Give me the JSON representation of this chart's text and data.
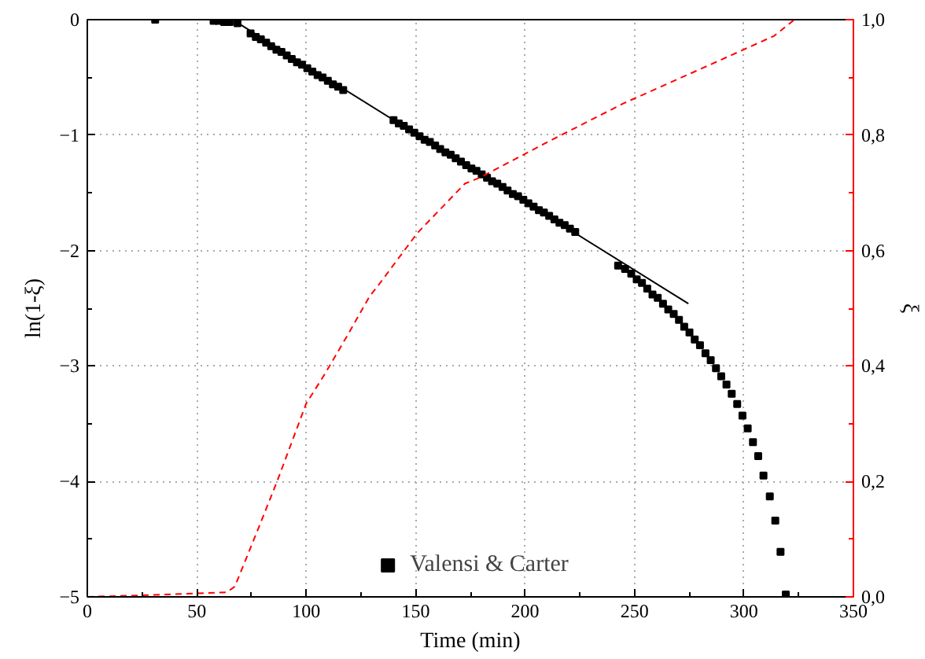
{
  "chart_data": {
    "type": "scatter",
    "xlabel": "Time (min)",
    "ylabel": "ln(1-ξ)",
    "y2label": "ξ",
    "xlim": [
      0,
      350
    ],
    "xticks": [
      0,
      50,
      100,
      150,
      200,
      250,
      300,
      350
    ],
    "ylim": [
      -5,
      0
    ],
    "yticks": [
      -5,
      -4,
      -3,
      -2,
      -1,
      0
    ],
    "y2lim": [
      0,
      1
    ],
    "y2ticks": [
      {
        "value": 0,
        "label": "0,0"
      },
      {
        "value": 0.2,
        "label": "0,2"
      },
      {
        "value": 0.4,
        "label": "0,4"
      },
      {
        "value": 0.6,
        "label": "0,6"
      },
      {
        "value": 0.8,
        "label": "0,8"
      },
      {
        "value": 1,
        "label": "1,0"
      }
    ],
    "grid": true,
    "legend": "bottom",
    "series": [
      {
        "name": "Valensi & Carter",
        "marker": "square",
        "color": "#000000",
        "x": [
          31,
          57.7,
          60,
          62.5,
          65,
          68.6,
          74.6,
          77.0,
          79.3,
          81.7,
          84.0,
          86.4,
          88.7,
          91.1,
          93.4,
          95.8,
          98.1,
          100.5,
          102.8,
          105.2,
          107.5,
          109.9,
          112.2,
          114.6,
          116.9,
          139.9,
          142.3,
          144.6,
          147.0,
          149.4,
          151.8,
          154.1,
          156.5,
          158.9,
          161.2,
          163.6,
          166.0,
          168.3,
          170.7,
          173.1,
          175.5,
          177.8,
          180.2,
          182.6,
          184.9,
          187.3,
          189.7,
          192.0,
          194.4,
          196.8,
          199.2,
          201.5,
          203.9,
          206.3,
          208.6,
          211.0,
          213.4,
          215.7,
          218.1,
          220.5,
          222.9,
          242.5,
          245.7,
          248.5,
          251,
          253.4,
          255.8,
          258.2,
          260.6,
          263,
          265.4,
          267.9,
          270.3,
          272.7,
          275.1,
          277.5,
          279.9,
          282.4,
          284.8,
          287.2,
          289.6,
          292,
          294.4,
          296.9,
          299.3,
          301.7,
          304.1,
          306.5,
          308.9,
          311.8,
          314.3,
          316.7,
          319.1
        ],
        "values": [
          0,
          -0.01,
          -0.01,
          -0.02,
          -0.02,
          -0.03,
          -0.12,
          -0.15,
          -0.17,
          -0.2,
          -0.23,
          -0.26,
          -0.28,
          -0.31,
          -0.34,
          -0.37,
          -0.39,
          -0.42,
          -0.45,
          -0.48,
          -0.5,
          -0.53,
          -0.56,
          -0.58,
          -0.61,
          -0.87,
          -0.9,
          -0.92,
          -0.95,
          -0.98,
          -1.01,
          -1.04,
          -1.06,
          -1.09,
          -1.12,
          -1.15,
          -1.17,
          -1.2,
          -1.23,
          -1.26,
          -1.29,
          -1.31,
          -1.34,
          -1.37,
          -1.4,
          -1.42,
          -1.45,
          -1.48,
          -1.51,
          -1.53,
          -1.56,
          -1.59,
          -1.62,
          -1.65,
          -1.67,
          -1.7,
          -1.73,
          -1.76,
          -1.78,
          -1.81,
          -1.84,
          -2.13,
          -2.16,
          -2.2,
          -2.25,
          -2.28,
          -2.33,
          -2.38,
          -2.41,
          -2.46,
          -2.51,
          -2.55,
          -2.6,
          -2.66,
          -2.71,
          -2.77,
          -2.82,
          -2.89,
          -2.95,
          -3.02,
          -3.09,
          -3.16,
          -3.24,
          -3.33,
          -3.43,
          -3.54,
          -3.66,
          -3.78,
          -3.95,
          -4.13,
          -4.34,
          -4.61,
          -4.98
        ]
      },
      {
        "type": "line",
        "line_style": "solid",
        "color": "#000000",
        "x": [
          68,
          274.6
        ],
        "values": [
          -0.02,
          -2.46
        ]
      },
      {
        "type": "line",
        "axis": "y2",
        "line_style": "dashed",
        "color": "#ff0000",
        "x": [
          0,
          27.5,
          63.8,
          67.4,
          78.3,
          86.7,
          100,
          108.5,
          119.3,
          129,
          133.8,
          150.7,
          172.5,
          179.7,
          208.7,
          245,
          281,
          313.8,
          323
        ],
        "values": [
          0,
          0.003,
          0.008,
          0.018,
          0.12,
          0.2,
          0.335,
          0.386,
          0.456,
          0.521,
          0.544,
          0.63,
          0.716,
          0.727,
          0.785,
          0.855,
          0.916,
          0.972,
          1
        ]
      }
    ]
  }
}
